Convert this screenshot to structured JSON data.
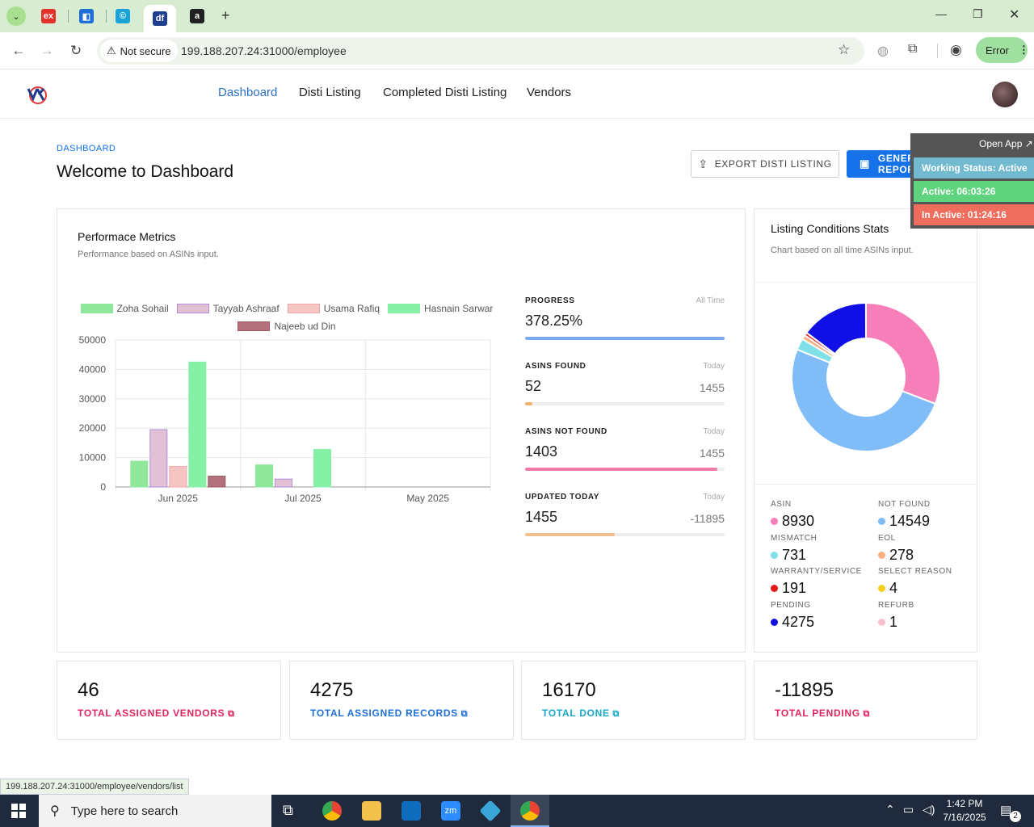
{
  "browser": {
    "tabs": [
      {
        "icon": "ex-favicon",
        "text": "ex",
        "color": "#e4312b"
      },
      {
        "icon": "blue-square-favicon",
        "text": "◧",
        "color": "#1d6fd6"
      },
      {
        "icon": "copyright-favicon",
        "text": "©",
        "color": "#1aa3d8"
      },
      {
        "icon": "df-favicon",
        "text": "df",
        "color": "#1e3f8f"
      },
      {
        "icon": "amazon-favicon",
        "text": "a",
        "color": "#222"
      }
    ],
    "not_secure": "Not secure",
    "url": "199.188.207.24:31000/employee",
    "error_label": "Error"
  },
  "nav": {
    "items": [
      "Dashboard",
      "Disti Listing",
      "Completed Disti Listing",
      "Vendors"
    ],
    "active": "Dashboard"
  },
  "page": {
    "breadcrumb": "DASHBOARD",
    "title": "Welcome to Dashboard",
    "export_btn": "EXPORT DISTI LISTING",
    "report_btn": "GENERATE REPORT"
  },
  "overlay": {
    "open_app": "Open App ↗",
    "working_status": "Working Status: Active",
    "active": "Active: 06:03:26",
    "inactive": "In Active: 01:24:16"
  },
  "performance": {
    "title": "Performace Metrics",
    "subtitle": "Performance based on ASINs input."
  },
  "chart_data": {
    "type": "bar",
    "categories": [
      "Jun 2025",
      "Jul 2025",
      "May 2025"
    ],
    "ylim": [
      0,
      50000
    ],
    "yticks": [
      0,
      10000,
      20000,
      30000,
      40000,
      50000
    ],
    "legend_position": "top",
    "grid": true,
    "series": [
      {
        "name": "Zoha Sohail",
        "color": "#8ee79a",
        "border": "#8ee79a",
        "values": [
          8800,
          7500,
          0
        ]
      },
      {
        "name": "Tayyab Ashraaf",
        "color": "#e2c1d6",
        "border": "#b08fd8",
        "values": [
          19500,
          2700,
          0
        ]
      },
      {
        "name": "Usama Rafiq",
        "color": "#f7c4c4",
        "border": "#f0a8a8",
        "values": [
          7000,
          0,
          0
        ]
      },
      {
        "name": "Hasnain Sarwar",
        "color": "#86f0a6",
        "border": "#86f0a6",
        "values": [
          42500,
          12800,
          0
        ]
      },
      {
        "name": "Najeeb ud Din",
        "color": "#b3717c",
        "border": "#9a5a66",
        "values": [
          3700,
          0,
          0
        ]
      }
    ]
  },
  "metrics": [
    {
      "label": "PROGRESS",
      "sub": "All Time",
      "value": "378.25%",
      "right": "",
      "color": "#7aaaf0",
      "fill": 1.0
    },
    {
      "label": "ASINS FOUND",
      "sub": "Today",
      "value": "52",
      "right": "1455",
      "color": "#f0b070",
      "fill": 0.036
    },
    {
      "label": "ASINS NOT FOUND",
      "sub": "Today",
      "value": "1403",
      "right": "1455",
      "color": "#f07aaa",
      "fill": 0.964
    },
    {
      "label": "UPDATED TODAY",
      "sub": "Today",
      "value": "1455",
      "right": "-11895",
      "color": "#f0c090",
      "fill": 0.45
    }
  ],
  "listing": {
    "title": "Listing Conditions Stats",
    "subtitle": "Chart based on all time ASINs input.",
    "stats": [
      {
        "label": "ASIN",
        "value": "8930",
        "color": "#f77fb9"
      },
      {
        "label": "NOT FOUND",
        "value": "14549",
        "color": "#80bcf8"
      },
      {
        "label": "MISMATCH",
        "value": "731",
        "color": "#7fe0e8"
      },
      {
        "label": "EOL",
        "value": "278",
        "color": "#f7b07f"
      },
      {
        "label": "WARRANTY/SERVICE",
        "value": "191",
        "color": "#e61919"
      },
      {
        "label": "SELECT REASON",
        "value": "4",
        "color": "#f5d019"
      },
      {
        "label": "PENDING",
        "value": "4275",
        "color": "#0f0fe6"
      },
      {
        "label": "REFURB",
        "value": "1",
        "color": "#f7c0cc"
      }
    ]
  },
  "kpis": [
    {
      "value": "46",
      "label": "TOTAL ASSIGNED VENDORS",
      "color": "#e0245e"
    },
    {
      "value": "4275",
      "label": "TOTAL ASSIGNED RECORDS",
      "color": "#1d6fd6"
    },
    {
      "value": "16170",
      "label": "TOTAL DONE",
      "color": "#18a8c9"
    },
    {
      "value": "-11895",
      "label": "TOTAL PENDING",
      "color": "#e0245e"
    }
  ],
  "status_url": "199.188.207.24:31000/employee/vendors/list",
  "taskbar": {
    "search_placeholder": "Type here to search",
    "time": "1:42 PM",
    "date": "7/16/2025",
    "notifications": "2"
  }
}
